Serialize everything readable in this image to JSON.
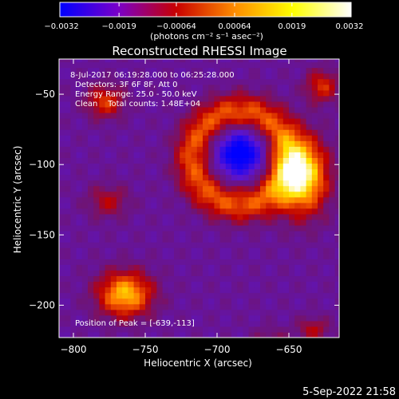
{
  "chart_data": {
    "type": "heatmap",
    "title": "Reconstructed RHESSI Image",
    "xlabel": "Heliocentric X (arcsec)",
    "ylabel": "Heliocentric Y (arcsec)",
    "xlim": [
      -810,
      -615
    ],
    "ylim": [
      -223,
      -25
    ],
    "xticks": [
      -800,
      -750,
      -700,
      -650
    ],
    "yticks": [
      -50,
      -100,
      -150,
      -200
    ],
    "xtick_labels": [
      "−800",
      "−750",
      "−700",
      "−650"
    ],
    "ytick_labels": [
      "−50",
      "−100",
      "−150",
      "−200"
    ],
    "colorbar": {
      "colormap": "blue-purple-red-yellow-white",
      "range": [
        -0.0032,
        0.0032
      ],
      "ticks": [
        -0.0032,
        -0.0019,
        -0.00064,
        0.00064,
        0.0019,
        0.0032
      ],
      "tick_labels": [
        "−0.0032",
        "−0.0019",
        "−0.00064",
        "0.00064",
        "0.0019",
        "0.0032"
      ],
      "unit_label": "(photons cm⁻² s⁻¹ asec⁻²)",
      "colors": [
        "#0000ff",
        "#7a00c8",
        "#c80000",
        "#ff8c00",
        "#ffff00",
        "#ffffff"
      ]
    },
    "annotations": [
      "8-Jul-2017 06:19:28.000 to 06:25:28.000",
      "Detectors: 3F 6F 8F, Att 0",
      "Energy Range: 25.0 - 50.0 keV",
      "Clean    Total counts: 1.48E+04"
    ],
    "peak_label": "Position of Peak = [-639,-113]",
    "peak": [
      -639,
      -113
    ],
    "sources": [
      {
        "x": -684,
        "y": -92,
        "amp": -2.2,
        "sx": 11,
        "sy": 11
      },
      {
        "x": -641,
        "y": -108,
        "amp": 3.0,
        "sx": 12,
        "sy": 18
      },
      {
        "x": -764,
        "y": -192,
        "amp": 2.4,
        "sx": 13,
        "sy": 11
      },
      {
        "x": -778,
        "y": -55,
        "amp": 1.4,
        "sx": 9,
        "sy": 8
      },
      {
        "x": -627,
        "y": -44,
        "amp": 1.3,
        "sx": 8,
        "sy": 8
      },
      {
        "x": -633,
        "y": -217,
        "amp": 0.9,
        "sx": 8,
        "sy": 6
      },
      {
        "x": -776,
        "y": -126,
        "amp": 0.9,
        "sx": 10,
        "sy": 8
      },
      {
        "x": -663,
        "y": -222,
        "amp": 0.5,
        "sx": 8,
        "sy": 5
      }
    ],
    "ring": {
      "x": -684,
      "y": -95,
      "r": 33,
      "w": 9,
      "amp": 1.6
    },
    "background": -0.25,
    "grid": false
  },
  "footer": {
    "timestamp": "5-Sep-2022 21:58"
  }
}
